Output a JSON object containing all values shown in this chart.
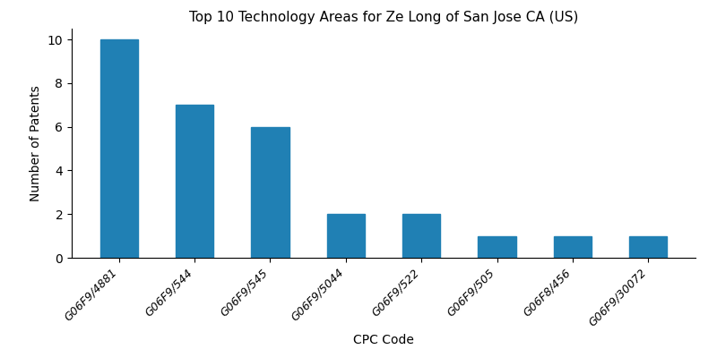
{
  "title": "Top 10 Technology Areas for Ze Long of San Jose CA (US)",
  "xlabel": "CPC Code",
  "ylabel": "Number of Patents",
  "categories": [
    "G06F9/4881",
    "G06F9/544",
    "G06F9/545",
    "G06F9/5044",
    "G06F9/522",
    "G06F9/505",
    "G06F8/456",
    "G06F9/30072"
  ],
  "values": [
    10,
    7,
    6,
    2,
    2,
    1,
    1,
    1
  ],
  "bar_color": "#2080b4",
  "ylim": [
    0,
    10.5
  ],
  "yticks": [
    0,
    2,
    4,
    6,
    8,
    10
  ],
  "figsize": [
    8.0,
    4.0
  ],
  "dpi": 100,
  "title_fontsize": 11,
  "axis_label_fontsize": 10,
  "tick_fontsize": 9,
  "bar_width": 0.5
}
